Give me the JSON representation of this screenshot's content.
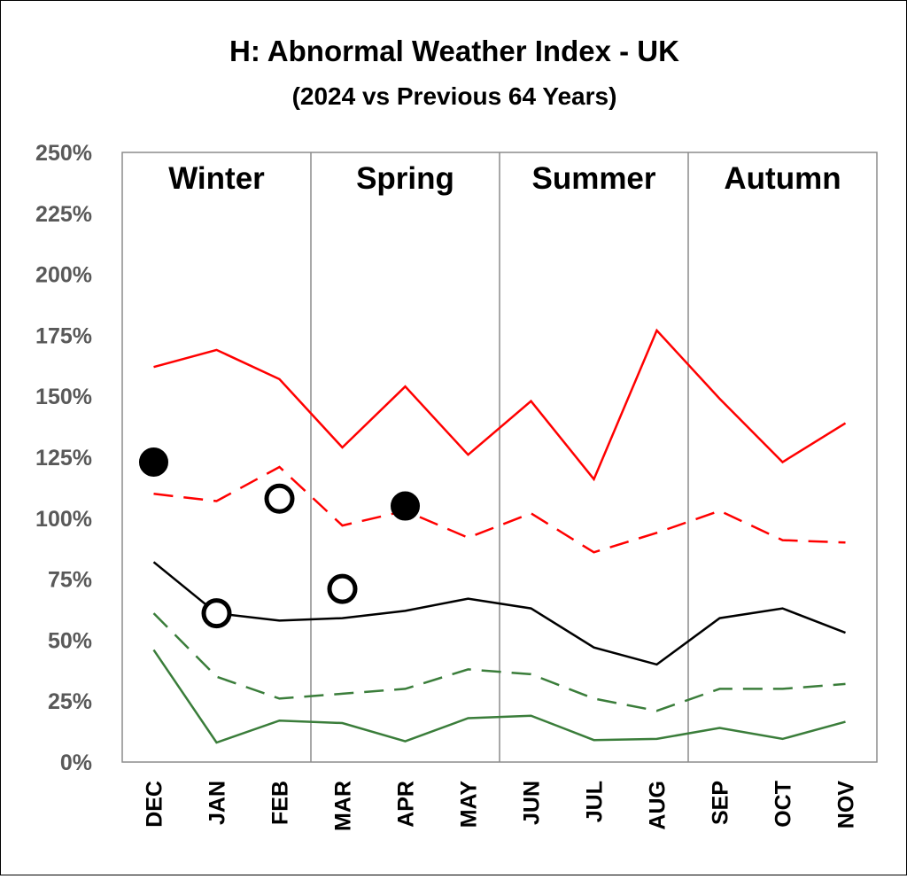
{
  "chart_data": {
    "type": "line",
    "title": "H: Abnormal Weather Index - UK",
    "subtitle": "(2024 vs Previous 64 Years)",
    "categories": [
      "DEC",
      "JAN",
      "FEB",
      "MAR",
      "APR",
      "MAY",
      "JUN",
      "JUL",
      "AUG",
      "SEP",
      "OCT",
      "NOV"
    ],
    "seasons": [
      "Winter",
      "Spring",
      "Summer",
      "Autumn"
    ],
    "y_ticks": [
      "0%",
      "25%",
      "50%",
      "75%",
      "100%",
      "125%",
      "150%",
      "175%",
      "200%",
      "225%",
      "250%"
    ],
    "ylim": [
      0,
      250
    ],
    "grid": false,
    "series": [
      {
        "style": "solid",
        "color": "#ff0000",
        "values": [
          162,
          169,
          157,
          129,
          154,
          126,
          148,
          116,
          177,
          149,
          123,
          139
        ]
      },
      {
        "style": "dashed",
        "color": "#ff0000",
        "values": [
          110,
          107,
          121,
          97,
          103,
          92,
          102,
          86,
          94,
          103,
          91,
          90
        ]
      },
      {
        "style": "solid",
        "color": "#000000",
        "values": [
          82,
          61,
          58,
          59,
          62,
          67,
          63,
          47,
          40,
          59,
          63,
          53
        ]
      },
      {
        "style": "dashed",
        "color": "#3a7d3a",
        "values": [
          61,
          35,
          26,
          28,
          30,
          38,
          36,
          26,
          21,
          30,
          30,
          32
        ]
      },
      {
        "style": "solid",
        "color": "#3a7d3a",
        "values": [
          46,
          8,
          17,
          16,
          8.5,
          18,
          19,
          9,
          9.5,
          14,
          9.5,
          16.5
        ]
      }
    ],
    "markers": [
      {
        "month": "DEC",
        "value": 123,
        "fill": "filled"
      },
      {
        "month": "JAN",
        "value": 61,
        "fill": "hollow"
      },
      {
        "month": "FEB",
        "value": 108,
        "fill": "hollow"
      },
      {
        "month": "MAR",
        "value": 71,
        "fill": "hollow"
      },
      {
        "month": "APR",
        "value": 105,
        "fill": "filled"
      }
    ]
  }
}
